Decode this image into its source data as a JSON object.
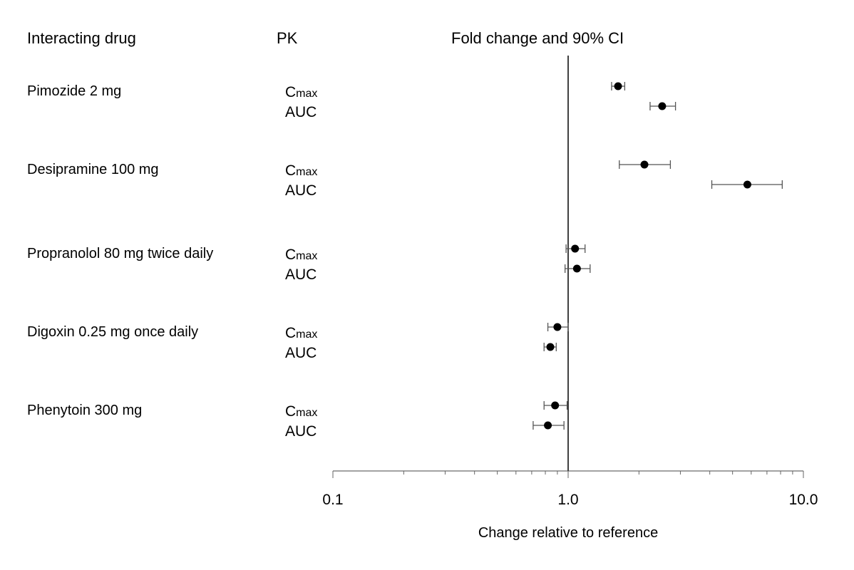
{
  "chart_data": {
    "type": "forest",
    "headers": {
      "drug": "Interacting drug",
      "pk": "PK",
      "plot": "Fold change and 90% CI"
    },
    "xlabel": "Change relative to reference",
    "xscale": "log",
    "xlim": [
      0.1,
      10.0
    ],
    "xticks": [
      "0.1",
      "1.0",
      "10.0"
    ],
    "reference_line": 1.0,
    "pk_labels": {
      "cmax_main": "C",
      "cmax_sub": "max",
      "auc": "AUC"
    },
    "groups": [
      {
        "drug": "Pimozide 2 mg",
        "rows": [
          {
            "pk": "Cmax",
            "value": 1.63,
            "lo": 1.53,
            "hi": 1.74
          },
          {
            "pk": "AUC",
            "value": 2.51,
            "lo": 2.23,
            "hi": 2.86
          }
        ]
      },
      {
        "drug": "Desipramine 100 mg",
        "rows": [
          {
            "pk": "Cmax",
            "value": 2.11,
            "lo": 1.65,
            "hi": 2.72
          },
          {
            "pk": "AUC",
            "value": 5.78,
            "lo": 4.08,
            "hi": 8.13
          }
        ]
      },
      {
        "drug": "Propranolol 80 mg twice daily",
        "rows": [
          {
            "pk": "Cmax",
            "value": 1.07,
            "lo": 0.98,
            "hi": 1.18
          },
          {
            "pk": "AUC",
            "value": 1.09,
            "lo": 0.97,
            "hi": 1.24
          }
        ]
      },
      {
        "drug": "Digoxin 0.25 mg once daily",
        "rows": [
          {
            "pk": "Cmax",
            "value": 0.9,
            "lo": 0.82,
            "hi": 1.0
          },
          {
            "pk": "AUC",
            "value": 0.84,
            "lo": 0.79,
            "hi": 0.89
          }
        ]
      },
      {
        "drug": "Phenytoin 300 mg",
        "rows": [
          {
            "pk": "Cmax",
            "value": 0.88,
            "lo": 0.79,
            "hi": 0.99
          },
          {
            "pk": "AUC",
            "value": 0.82,
            "lo": 0.71,
            "hi": 0.96
          }
        ]
      }
    ]
  }
}
